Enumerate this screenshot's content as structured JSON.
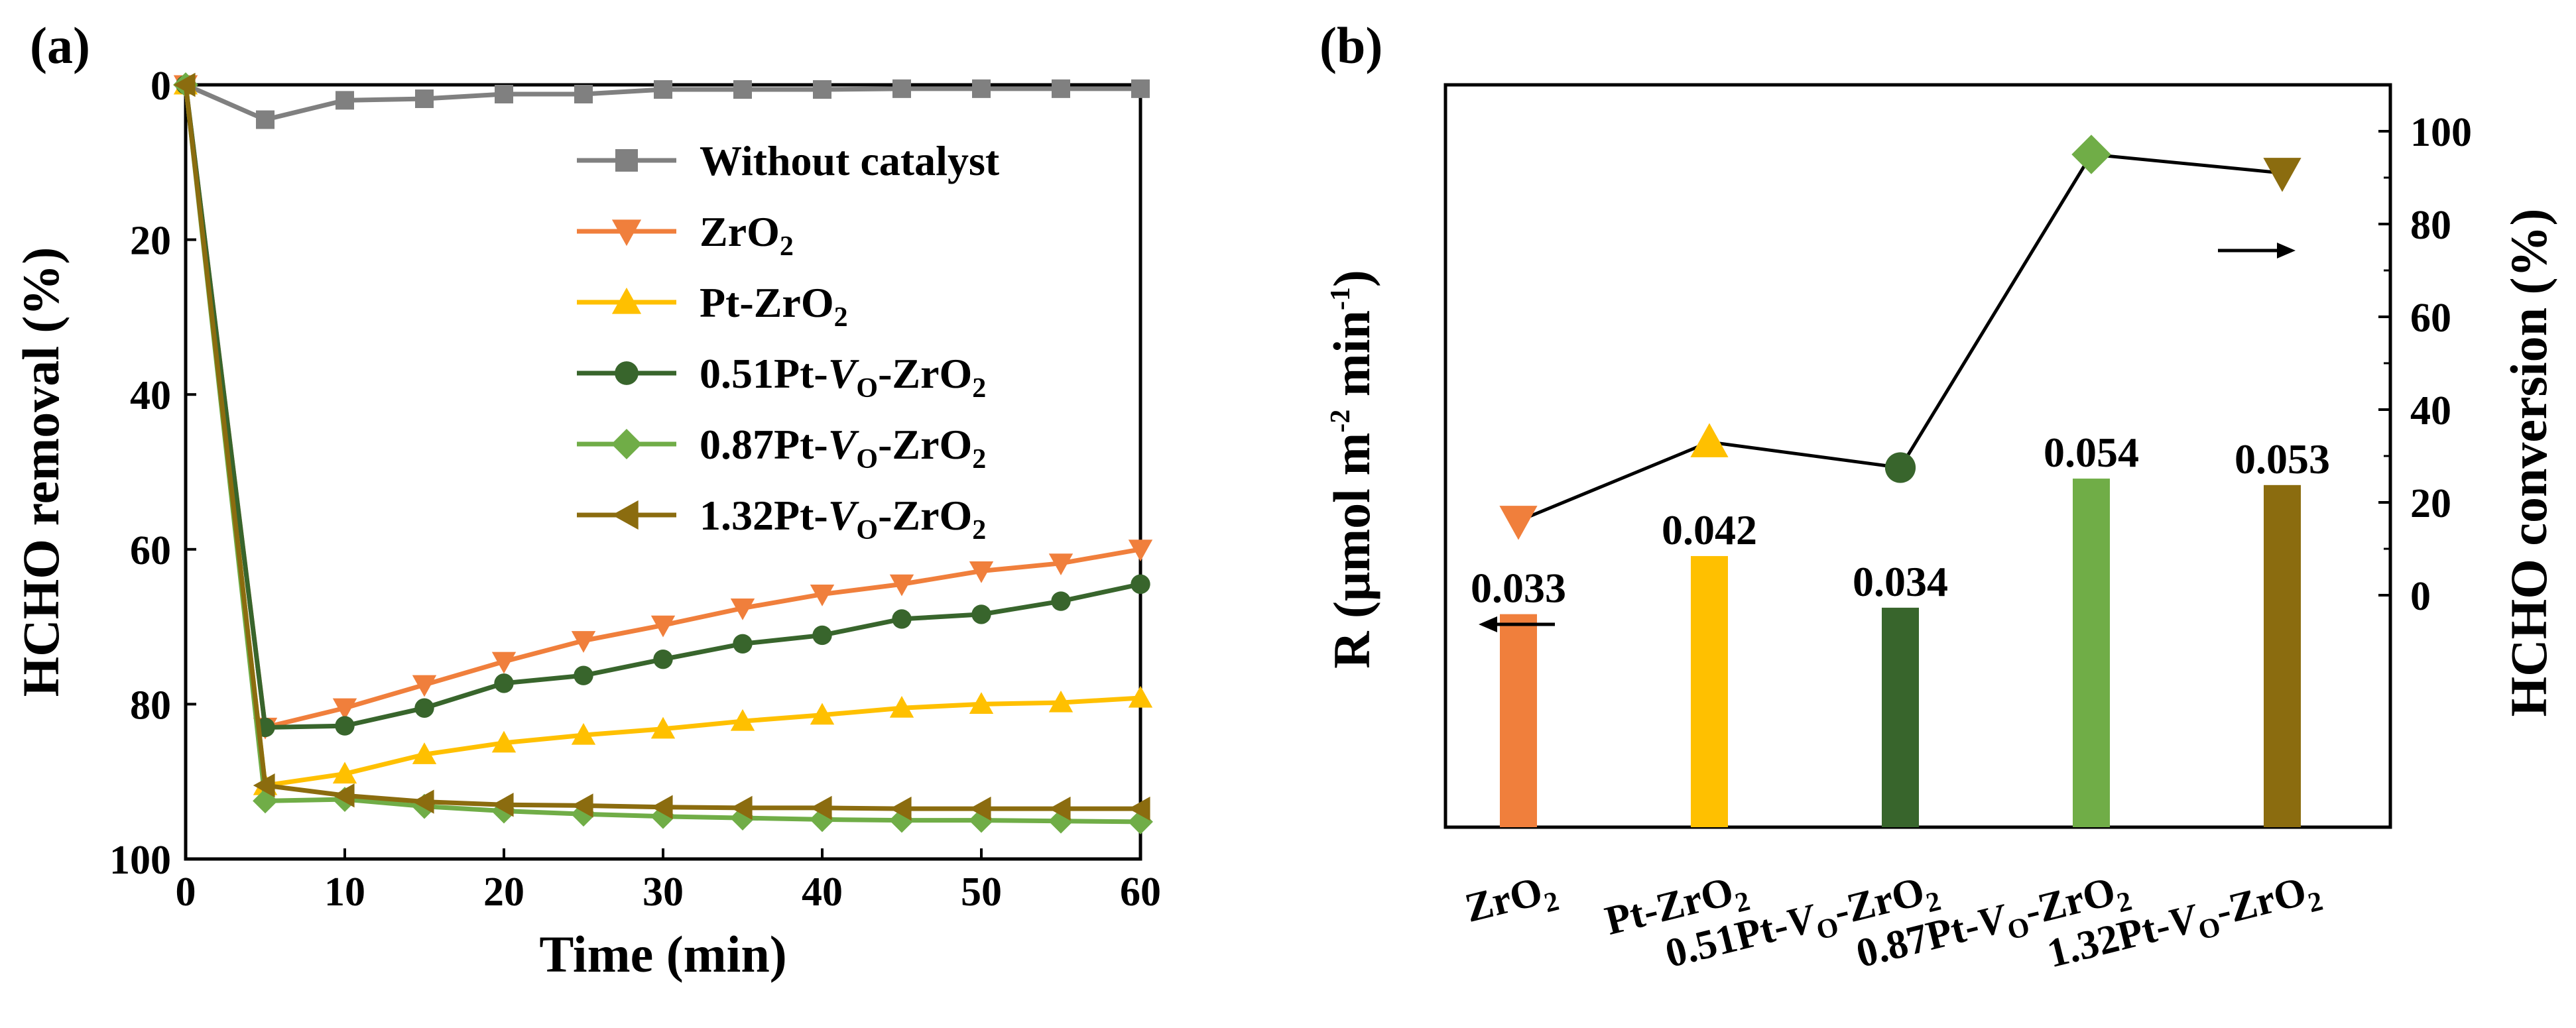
{
  "panel_a_label": "(a)",
  "panel_b_label": "(b)",
  "chart_data": [
    {
      "type": "line",
      "xlabel": "Time (min)",
      "ylabel": "HCHO removal (%)",
      "xlim": [
        0,
        60
      ],
      "ylim": [
        0,
        100
      ],
      "y_inverted": true,
      "xticks": [
        "0",
        "10",
        "20",
        "30",
        "40",
        "50",
        "60"
      ],
      "yticks": [
        "0",
        "20",
        "40",
        "60",
        "80",
        "100"
      ],
      "legend_position": "top-right",
      "x": [
        0,
        5,
        10,
        15,
        20,
        25,
        30,
        35,
        40,
        45,
        50,
        55,
        60
      ],
      "series": [
        {
          "name": "Without catalyst",
          "name_main": "Without catalyst",
          "color": "#808080",
          "marker": "square",
          "values": [
            0,
            4.5,
            2,
            1.8,
            1.2,
            1.2,
            0.6,
            0.6,
            0.6,
            0.5,
            0.5,
            0.5,
            0.5
          ]
        },
        {
          "name": "ZrO2",
          "name_main": "ZrO",
          "name_sub": "2",
          "name_tail": "",
          "color": "#f07f3c",
          "marker": "tri-down",
          "values": [
            0,
            83,
            80.5,
            77.5,
            74.5,
            71.8,
            69.8,
            67.6,
            65.8,
            64.5,
            62.8,
            61.8,
            60
          ]
        },
        {
          "name": "Pt-ZrO2",
          "name_main": "Pt-ZrO",
          "name_sub": "2",
          "name_tail": "",
          "color": "#ffc000",
          "marker": "tri-up",
          "values": [
            0,
            90.5,
            89,
            86.5,
            85,
            84,
            83.2,
            82.2,
            81.4,
            80.5,
            80,
            79.8,
            79.2
          ]
        },
        {
          "name": "0.51Pt-VO-ZrO2",
          "name_main": "0.51Pt-",
          "name_it": "V",
          "name_sub": "O",
          "name_tail": "-ZrO",
          "name_sub2": "2",
          "color": "#38652c",
          "marker": "circle",
          "values": [
            0,
            83,
            82.8,
            80.5,
            77.3,
            76.3,
            74.2,
            72.2,
            71.1,
            69,
            68.4,
            66.7,
            64.5
          ]
        },
        {
          "name": "0.87Pt-VO-ZrO2",
          "name_main": "0.87Pt-",
          "name_it": "V",
          "name_sub": "O",
          "name_tail": "-ZrO",
          "name_sub2": "2",
          "color": "#70ad47",
          "marker": "diamond",
          "values": [
            0,
            92.5,
            92.3,
            93.2,
            93.8,
            94.2,
            94.5,
            94.7,
            94.9,
            95,
            95,
            95.1,
            95.2
          ]
        },
        {
          "name": "1.32Pt-VO-ZrO2",
          "name_main": "1.32Pt-",
          "name_it": "V",
          "name_sub": "O",
          "name_tail": "-ZrO",
          "name_sub2": "2",
          "color": "#8b6c0f",
          "marker": "tri-left",
          "values": [
            0,
            90.5,
            91.8,
            92.6,
            93,
            93.1,
            93.3,
            93.4,
            93.4,
            93.5,
            93.5,
            93.5,
            93.5
          ]
        }
      ]
    },
    {
      "type": "bar",
      "ylabel_left": "R (μmol m-2 min-1)",
      "ylabel_left_main": "R (μmol m",
      "ylabel_left_sup1": "-2",
      "ylabel_left_mid": " min",
      "ylabel_left_sup2": "-1",
      "ylabel_left_end": ")",
      "ylabel_right": "HCHO conversion (%)",
      "right_ylim": [
        -50,
        110
      ],
      "right_yticks": [
        "0",
        "20",
        "40",
        "60",
        "80",
        "100"
      ],
      "categories": [
        {
          "main": "ZrO",
          "sub": "2",
          "tail": "",
          "sub2": ""
        },
        {
          "main": "Pt-ZrO",
          "sub": "2",
          "tail": "",
          "sub2": ""
        },
        {
          "main": "0.51Pt-",
          "it": "V",
          "sub": "O",
          "tail": "-ZrO",
          "sub2": "2"
        },
        {
          "main": "0.87Pt-",
          "it": "V",
          "sub": "O",
          "tail": "-ZrO",
          "sub2": "2"
        },
        {
          "main": "1.32Pt-",
          "it": "V",
          "sub": "O",
          "tail": "-ZrO",
          "sub2": "2"
        }
      ],
      "bars": {
        "values": [
          0.033,
          0.042,
          0.034,
          0.054,
          0.053
        ],
        "labels": [
          "0.033",
          "0.042",
          "0.034",
          "0.054",
          "0.053"
        ],
        "colors": [
          "#f07f3c",
          "#ffc000",
          "#38652c",
          "#70ad47",
          "#8b6c0f"
        ],
        "axis": "left"
      },
      "line": {
        "values": [
          16,
          33,
          27.5,
          95,
          91
        ],
        "markers": [
          "tri-down",
          "tri-up",
          "circle",
          "diamond",
          "tri-down"
        ],
        "colors": [
          "#f07f3c",
          "#ffc000",
          "#38652c",
          "#70ad47",
          "#8b6c0f"
        ],
        "axis": "right"
      },
      "annotations": [
        "arrow-left (bars → left axis)",
        "arrow-right (line → right axis)"
      ]
    }
  ]
}
